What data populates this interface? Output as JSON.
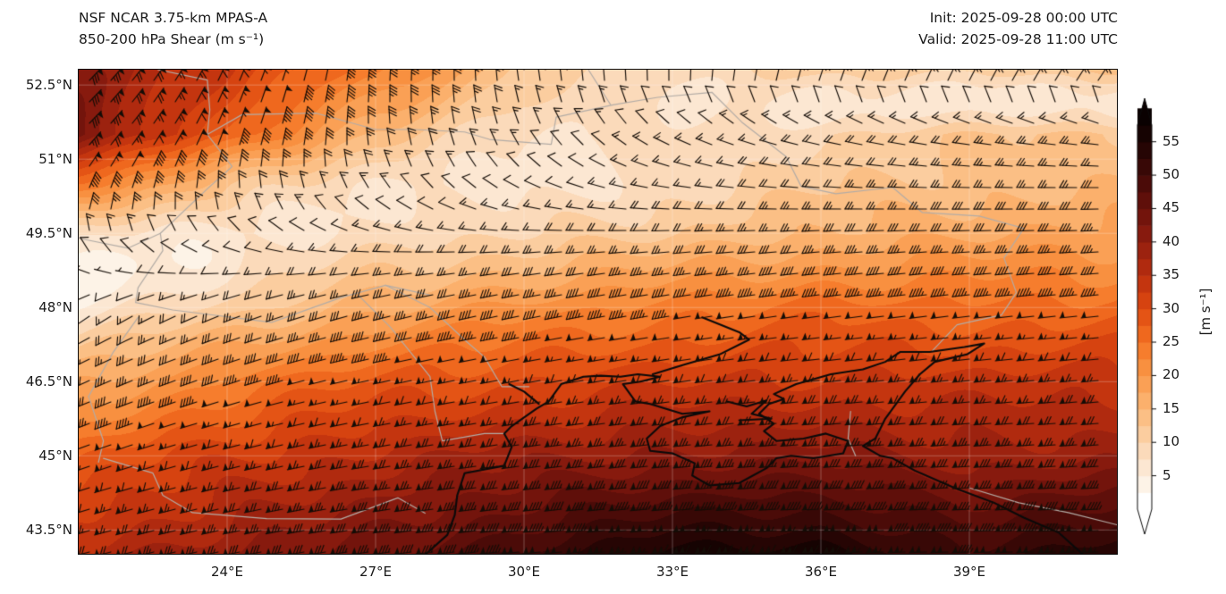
{
  "header": {
    "title_line1": "NSF NCAR 3.75-km MPAS-A",
    "title_line2": "850-200 hPa Shear (m s⁻¹)",
    "init_time": "Init: 2025-09-28 00:00 UTC",
    "valid_time": "Valid: 2025-09-28 11:00 UTC"
  },
  "chart_data": {
    "type": "heatmap",
    "title": "NSF NCAR 3.75-km MPAS-A 850-200 hPa Shear",
    "units": "m s⁻¹",
    "projection": "plate-carree",
    "lon_range": [
      21.0,
      42.0
    ],
    "lat_range": [
      43.0,
      52.81
    ],
    "grid_on": true,
    "x_ticks": [
      {
        "lon": 24,
        "label": "24°E"
      },
      {
        "lon": 27,
        "label": "27°E"
      },
      {
        "lon": 30,
        "label": "30°E"
      },
      {
        "lon": 33,
        "label": "33°E"
      },
      {
        "lon": 36,
        "label": "36°E"
      },
      {
        "lon": 39,
        "label": "39°E"
      }
    ],
    "y_ticks": [
      {
        "lat": 52.5,
        "label": "52.5°N"
      },
      {
        "lat": 51.0,
        "label": "51°N"
      },
      {
        "lat": 49.5,
        "label": "49.5°N"
      },
      {
        "lat": 48.0,
        "label": "48°N"
      },
      {
        "lat": 46.5,
        "label": "46.5°N"
      },
      {
        "lat": 45.0,
        "label": "45°N"
      },
      {
        "lat": 43.5,
        "label": "43.5°N"
      }
    ],
    "colorbar": {
      "label": "[m s⁻¹]",
      "ticks": [
        5,
        10,
        15,
        20,
        25,
        30,
        35,
        40,
        45,
        50,
        55
      ],
      "min": 0,
      "max": 57.5,
      "step": 2.5,
      "extend": "both",
      "colors": [
        "#ffffff",
        "#fdf3e7",
        "#fce7d2",
        "#fbdaba",
        "#fbcd9f",
        "#fbbf85",
        "#fbb06c",
        "#faa055",
        "#f89040",
        "#f67d2d",
        "#ef681e",
        "#e45415",
        "#d64310",
        "#c4350f",
        "#b02a0f",
        "#9c220f",
        "#871a0e",
        "#73140c",
        "#5f0f0a",
        "#4b0b08",
        "#380806",
        "#260504",
        "#160302",
        "#0a0101"
      ]
    },
    "shear_field": {
      "description": "850-200 hPa shear vectors on coarse grid; speed in m/s, dir_from in degrees (wind-from)",
      "lons": [
        21,
        24,
        27,
        30,
        33,
        36,
        39,
        42
      ],
      "lats": [
        53,
        51.5,
        50.5,
        49.5,
        48,
        46.5,
        45,
        43
      ],
      "speed": [
        [
          40,
          33,
          26,
          12,
          10,
          13,
          14,
          16
        ],
        [
          43,
          28,
          14,
          8,
          8,
          10,
          12,
          13
        ],
        [
          25,
          13,
          8,
          6,
          9,
          12,
          14,
          15
        ],
        [
          8,
          6,
          8,
          10,
          12,
          15,
          17,
          18
        ],
        [
          6,
          11,
          17,
          21,
          24,
          26,
          26,
          26
        ],
        [
          17,
          23,
          28,
          30,
          32,
          33,
          33,
          34
        ],
        [
          27,
          32,
          36,
          39,
          41,
          41,
          39,
          39
        ],
        [
          36,
          40,
          44,
          51,
          56,
          57,
          50,
          56
        ]
      ],
      "dir_from": [
        [
          45,
          25,
          5,
          355,
          15,
          35,
          45,
          50
        ],
        [
          45,
          20,
          355,
          335,
          300,
          285,
          280,
          278
        ],
        [
          25,
          0,
          330,
          300,
          280,
          275,
          272,
          270
        ],
        [
          345,
          315,
          285,
          272,
          268,
          267,
          268,
          268
        ],
        [
          230,
          247,
          255,
          258,
          260,
          262,
          263,
          264
        ],
        [
          245,
          252,
          258,
          260,
          262,
          264,
          264,
          265
        ],
        [
          250,
          255,
          260,
          262,
          264,
          266,
          266,
          266
        ],
        [
          255,
          258,
          262,
          264,
          266,
          268,
          268,
          268
        ]
      ]
    },
    "barbs": {
      "half": 2.5,
      "full": 5,
      "pennant": 25,
      "spacing_px": 24,
      "color": "#140d07"
    },
    "map_features": {
      "coast_color": "#0a0a0a",
      "border_color": "#b3aca6",
      "gridline_color": "rgba(255,255,255,0.28)",
      "coastlines": [
        [
          [
            28.0,
            43.0
          ],
          [
            28.45,
            43.4
          ],
          [
            28.6,
            43.8
          ],
          [
            28.65,
            44.2
          ],
          [
            28.8,
            44.65
          ],
          [
            29.6,
            44.8
          ],
          [
            29.75,
            45.18
          ],
          [
            29.6,
            45.45
          ],
          [
            29.75,
            45.6
          ],
          [
            30.25,
            45.95
          ],
          [
            30.5,
            46.1
          ],
          [
            30.75,
            46.45
          ],
          [
            31.2,
            46.6
          ],
          [
            31.55,
            46.62
          ],
          [
            31.95,
            46.6
          ],
          [
            32.3,
            46.65
          ],
          [
            32.75,
            46.6
          ],
          [
            32.35,
            46.5
          ],
          [
            32.0,
            46.45
          ],
          [
            32.25,
            46.1
          ],
          [
            32.55,
            46.05
          ],
          [
            33.2,
            45.85
          ],
          [
            33.75,
            45.9
          ],
          [
            33.2,
            45.78
          ],
          [
            32.75,
            45.6
          ],
          [
            32.48,
            45.35
          ],
          [
            32.55,
            45.1
          ],
          [
            33.0,
            45.05
          ],
          [
            33.45,
            44.85
          ],
          [
            33.4,
            44.6
          ],
          [
            33.75,
            44.4
          ],
          [
            34.35,
            44.45
          ],
          [
            34.9,
            44.75
          ],
          [
            35.1,
            44.95
          ],
          [
            35.4,
            45.0
          ],
          [
            35.85,
            44.95
          ],
          [
            36.45,
            45.05
          ],
          [
            36.55,
            45.3
          ],
          [
            36.1,
            45.45
          ],
          [
            35.65,
            45.35
          ],
          [
            35.1,
            45.3
          ],
          [
            34.85,
            45.5
          ],
          [
            35.05,
            45.65
          ],
          [
            34.75,
            45.85
          ],
          [
            34.95,
            46.05
          ],
          [
            35.25,
            46.15
          ],
          [
            35.05,
            46.25
          ],
          [
            35.5,
            46.45
          ],
          [
            36.2,
            46.65
          ],
          [
            36.85,
            46.75
          ],
          [
            37.3,
            46.9
          ],
          [
            37.6,
            47.1
          ],
          [
            38.2,
            47.1
          ],
          [
            38.9,
            47.2
          ],
          [
            39.3,
            47.27
          ],
          [
            38.95,
            47.05
          ],
          [
            38.3,
            46.9
          ],
          [
            38.0,
            46.65
          ],
          [
            37.7,
            46.3
          ],
          [
            37.3,
            45.75
          ],
          [
            37.1,
            45.35
          ],
          [
            36.85,
            45.2
          ],
          [
            37.2,
            45.0
          ],
          [
            37.45,
            44.95
          ],
          [
            37.9,
            44.7
          ],
          [
            38.7,
            44.35
          ],
          [
            39.5,
            44.05
          ],
          [
            40.1,
            43.75
          ],
          [
            40.8,
            43.45
          ],
          [
            41.3,
            43.0
          ]
        ],
        [
          [
            32.6,
            46.65
          ],
          [
            33.25,
            46.85
          ],
          [
            33.95,
            47.05
          ],
          [
            34.55,
            47.35
          ],
          [
            34.35,
            47.5
          ],
          [
            33.6,
            47.8
          ]
        ],
        [
          [
            30.3,
            46.05
          ],
          [
            30.0,
            46.3
          ],
          [
            29.7,
            46.45
          ]
        ],
        [
          [
            34.1,
            46.1
          ],
          [
            34.5,
            46.0
          ],
          [
            34.9,
            46.12
          ],
          [
            34.6,
            45.85
          ],
          [
            35.0,
            45.75
          ],
          [
            34.35,
            45.72
          ]
        ]
      ],
      "borders": [
        [
          [
            22.6,
            52.81
          ],
          [
            23.6,
            52.6
          ],
          [
            23.65,
            52.0
          ],
          [
            23.6,
            51.5
          ],
          [
            24.3,
            51.9
          ],
          [
            25.8,
            51.93
          ],
          [
            27.0,
            51.6
          ],
          [
            27.8,
            51.6
          ],
          [
            28.8,
            51.55
          ],
          [
            29.3,
            51.4
          ],
          [
            30.55,
            51.3
          ],
          [
            30.65,
            51.85
          ],
          [
            31.8,
            52.1
          ],
          [
            32.7,
            52.25
          ],
          [
            33.8,
            52.35
          ],
          [
            34.4,
            51.75
          ],
          [
            35.3,
            51.05
          ],
          [
            35.6,
            50.45
          ],
          [
            36.3,
            50.3
          ],
          [
            37.45,
            50.43
          ],
          [
            38.05,
            49.92
          ],
          [
            39.2,
            49.85
          ],
          [
            40.1,
            49.6
          ],
          [
            39.7,
            49.0
          ],
          [
            39.95,
            48.3
          ],
          [
            39.65,
            47.85
          ],
          [
            38.75,
            47.65
          ],
          [
            38.25,
            47.12
          ]
        ],
        [
          [
            23.6,
            51.5
          ],
          [
            24.1,
            50.85
          ],
          [
            23.6,
            50.4
          ],
          [
            22.65,
            49.5
          ],
          [
            22.7,
            49.15
          ],
          [
            22.2,
            48.4
          ]
        ],
        [
          [
            21.0,
            49.4
          ],
          [
            22.0,
            49.2
          ],
          [
            22.65,
            49.5
          ]
        ],
        [
          [
            22.2,
            48.4
          ],
          [
            22.15,
            48.1
          ],
          [
            22.9,
            47.95
          ],
          [
            24.9,
            47.7
          ],
          [
            26.3,
            48.2
          ],
          [
            27.2,
            48.45
          ],
          [
            28.1,
            48.25
          ]
        ],
        [
          [
            27.2,
            48.45
          ],
          [
            28.1,
            48.0
          ],
          [
            28.85,
            47.3
          ],
          [
            29.2,
            47.0
          ],
          [
            29.55,
            46.4
          ],
          [
            30.1,
            46.4
          ]
        ],
        [
          [
            26.65,
            48.25
          ],
          [
            27.3,
            47.6
          ],
          [
            28.1,
            46.6
          ],
          [
            28.2,
            45.9
          ],
          [
            28.35,
            45.3
          ],
          [
            29.2,
            45.45
          ],
          [
            29.6,
            45.45
          ]
        ],
        [
          [
            22.2,
            47.8
          ],
          [
            21.7,
            47.1
          ],
          [
            21.2,
            46.2
          ]
        ],
        [
          [
            21.2,
            46.2
          ],
          [
            21.5,
            45.3
          ],
          [
            21.4,
            44.87
          ]
        ],
        [
          [
            21.5,
            44.95
          ],
          [
            22.5,
            44.65
          ],
          [
            22.7,
            44.2
          ],
          [
            23.3,
            43.85
          ],
          [
            24.8,
            43.73
          ],
          [
            26.3,
            43.72
          ],
          [
            27.45,
            44.15
          ],
          [
            28.0,
            43.84
          ]
        ],
        [
          [
            31.3,
            52.81
          ],
          [
            31.75,
            52.1
          ]
        ],
        [
          [
            39.0,
            44.35
          ],
          [
            40.0,
            44.05
          ],
          [
            41.0,
            43.85
          ],
          [
            42.0,
            43.6
          ]
        ],
        [
          [
            36.6,
            45.9
          ],
          [
            36.55,
            45.35
          ],
          [
            36.7,
            45.0
          ]
        ]
      ]
    }
  }
}
